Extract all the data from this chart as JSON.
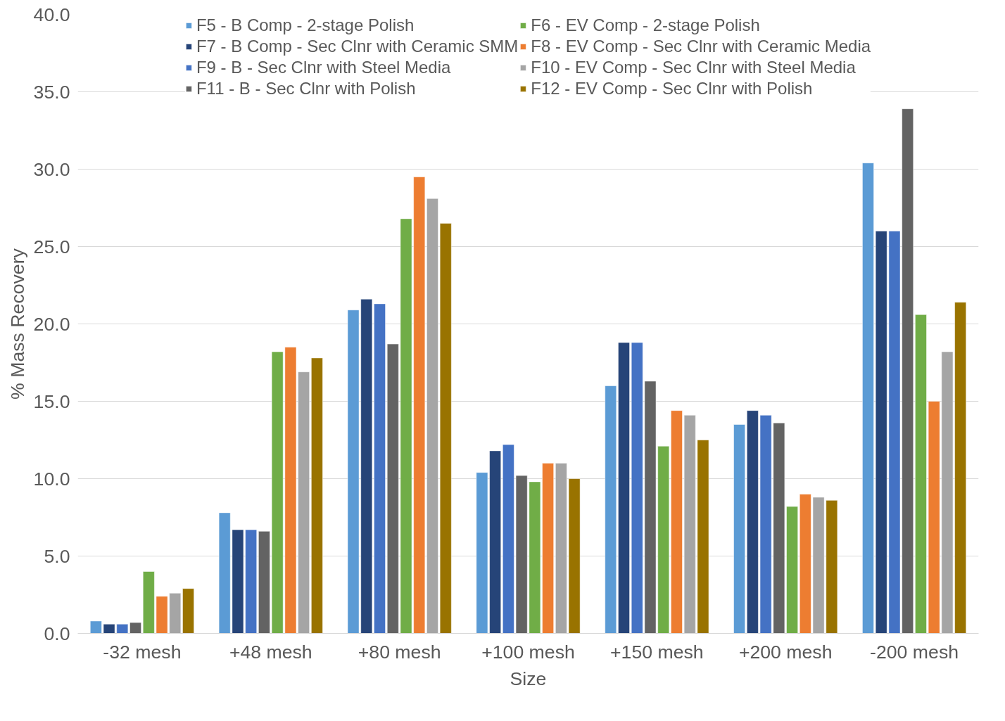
{
  "chart_data": {
    "type": "bar",
    "xlabel": "Size",
    "ylabel": "% Mass Recovery",
    "categories": [
      "-32 mesh",
      "+48 mesh",
      "+80 mesh",
      "+100 mesh",
      "+150 mesh",
      "+200 mesh",
      "-200 mesh"
    ],
    "series": [
      {
        "name": "F5 - B Comp - 2-stage Polish",
        "color": "#5b9bd5",
        "values": [
          0.8,
          7.8,
          20.9,
          10.4,
          16.0,
          13.5,
          30.4
        ]
      },
      {
        "name": "F7 - B Comp - Sec Clnr with Ceramic SMM",
        "color": "#264478",
        "values": [
          0.6,
          6.7,
          21.6,
          11.8,
          18.8,
          14.4,
          26.0
        ]
      },
      {
        "name": "F9 - B - Sec Clnr with Steel Media",
        "color": "#4472c4",
        "values": [
          0.6,
          6.7,
          21.3,
          12.2,
          18.8,
          14.1,
          26.0
        ]
      },
      {
        "name": "F11 - B - Sec Clnr with Polish",
        "color": "#636363",
        "values": [
          0.7,
          6.6,
          18.7,
          10.2,
          16.3,
          13.6,
          33.9
        ]
      },
      {
        "name": "F6 - EV Comp - 2-stage Polish",
        "color": "#70ad47",
        "values": [
          4.0,
          18.2,
          26.8,
          9.8,
          12.1,
          8.2,
          20.6
        ]
      },
      {
        "name": "F8 - EV Comp - Sec Clnr with Ceramic Media",
        "color": "#ed7d31",
        "values": [
          2.4,
          18.5,
          29.5,
          11.0,
          14.4,
          9.0,
          15.0
        ]
      },
      {
        "name": "F10 - EV Comp - Sec Clnr with Steel Media",
        "color": "#a5a5a5",
        "values": [
          2.6,
          16.9,
          28.1,
          11.0,
          14.1,
          8.8,
          18.2
        ]
      },
      {
        "name": "F12 - EV Comp - Sec Clnr with Polish",
        "color": "#997300",
        "values": [
          2.9,
          17.8,
          26.5,
          10.0,
          12.5,
          8.6,
          21.4
        ]
      }
    ],
    "ylim": [
      0,
      40
    ],
    "yticks": [
      {
        "value": 0,
        "label": "0.0"
      },
      {
        "value": 5,
        "label": "5.0"
      },
      {
        "value": 10,
        "label": "10.0"
      },
      {
        "value": 15,
        "label": "15.0"
      },
      {
        "value": 20,
        "label": "20.0"
      },
      {
        "value": 25,
        "label": "25.0"
      },
      {
        "value": 30,
        "label": "30.0"
      },
      {
        "value": 35,
        "label": "35.0"
      },
      {
        "value": 40,
        "label": "40.0"
      }
    ],
    "grid": "y",
    "legend": "top"
  }
}
